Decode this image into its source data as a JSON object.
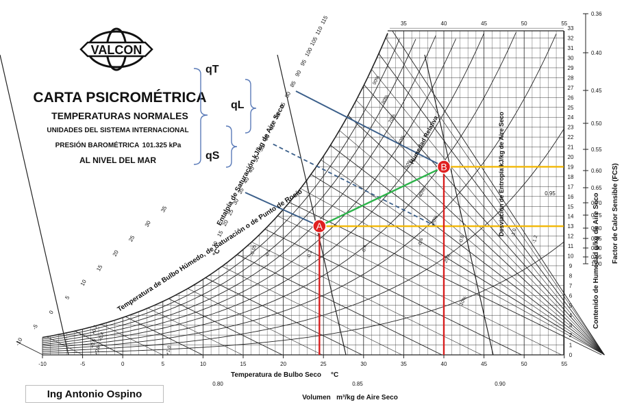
{
  "header": {
    "logo_text": "VALCON",
    "title": "CARTA PSICROMÉTRICA",
    "subtitle": "TEMPERATURAS NORMALES",
    "units_line": "UNIDADES DEL SISTEMA INTERNACIONAL",
    "pressure_label": "PRESIÓN BAROMÉTRICA",
    "pressure_value": "101.325 kPa",
    "sea_level": "AL NIVEL DEL MAR"
  },
  "heat_labels": {
    "qT": "qT",
    "qL": "qL",
    "qS": "qS"
  },
  "credit": "Ing Antonio Ospino",
  "colors": {
    "process_line": "#2db34a",
    "state_vertical": "#d81e1e",
    "state_horizontal": "#f2b705",
    "enthalpy_line": "#3b5f8a",
    "grid": "#222222",
    "point_fill": "#e02020"
  },
  "chart_data": {
    "type": "psychrometric",
    "title": "CARTA PSICROMÉTRICA",
    "x_axis": {
      "label": "Temperatura de Bulbo Seco",
      "unit": "°C",
      "range": [
        -10,
        55
      ],
      "ticks": [
        -10,
        -5,
        0,
        5,
        10,
        15,
        20,
        25,
        30,
        35,
        40,
        45,
        50,
        55
      ]
    },
    "top_ticks": [
      35,
      40,
      45,
      50,
      55
    ],
    "y_axis": {
      "label": "Contenido de Humedad g/kg de Aire Seco",
      "range": [
        0,
        33
      ],
      "ticks": [
        0,
        1,
        2,
        3,
        4,
        5,
        6,
        7,
        8,
        9,
        10,
        11,
        12,
        13,
        14,
        15,
        16,
        17,
        18,
        19,
        20,
        21,
        22,
        23,
        24,
        25,
        26,
        27,
        28,
        29,
        30,
        31,
        32,
        33
      ]
    },
    "shf_scale": {
      "label": "Factor de Calor Sensible (FCS)",
      "ticks": [
        "0.36",
        "0.40",
        "0.45",
        "0.50",
        "0.55",
        "0.60",
        "0.65",
        "0.70",
        "0.75",
        "0.80",
        "0.85",
        "0.90",
        "0.95",
        "1.00"
      ]
    },
    "enthalpy_scale": {
      "label": "Entalpía de Saturación kJ/kg de Aire Seco",
      "ticks": [
        10,
        15,
        20,
        25,
        30,
        35,
        40,
        45,
        50,
        55,
        60,
        65,
        70,
        75,
        80,
        85,
        90,
        95,
        100,
        105,
        110,
        115
      ]
    },
    "wet_bulb_scale": {
      "label": "Temperatura de Bulbo Húmedo, de Saturación o de Punto de Rocío",
      "unit": "°C",
      "ticks": [
        -10,
        -5,
        0,
        5,
        10,
        15,
        20,
        25,
        30,
        35
      ]
    },
    "volume_scale": {
      "label": "Volumen",
      "unit": "m³/kg de Aire Seco",
      "ticks": [
        "0.80",
        "0.85",
        "0.90"
      ]
    },
    "relative_humidity_label": "Humedad Relativa",
    "relative_humidity_curves": [
      "10%",
      "20%",
      "30%",
      "40%",
      "50%",
      "60%",
      "70%",
      "80%",
      "90%"
    ],
    "entropy_label": "Desviación de Entropía kJ/kg de Aire Seco",
    "entropy_ticks": [
      "+0.2",
      "+0.4",
      "+0.6",
      "+0.8",
      "+1.0",
      "-0.05",
      "-0.1",
      "-0.2",
      "-0.4",
      "-0.6",
      "-0.8",
      "-1.0",
      "-1.2"
    ],
    "shf_inner_tick": "0.95",
    "points": [
      {
        "name": "A",
        "tdb": 24.5,
        "w": 13
      },
      {
        "name": "B",
        "tdb": 40,
        "w": 19
      }
    ]
  }
}
